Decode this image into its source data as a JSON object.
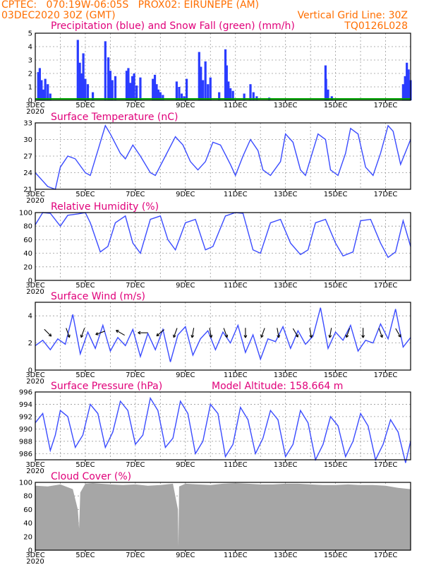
{
  "header": {
    "line1": "CPTEC:   070:19W-06:05S   PROX02: EIRUNEPE (AM)",
    "line2_left": "03DEC2020 30Z (GMT)",
    "line2_right": "Vertical Grid Line: 30Z",
    "code": "TQ0126L028"
  },
  "colors": {
    "header": "#ff6e00",
    "title": "#e0007a",
    "line": "#3a4bff",
    "precip": "#2a3cff",
    "snow": "#00a000",
    "cloud": "#a6a6a6"
  },
  "x_ticks": [
    "3DEC",
    "5DEC",
    "7DEC",
    "9DEC",
    "11DEC",
    "13DEC",
    "15DEC",
    "17DEC"
  ],
  "x_sublabel": "2020",
  "chart_data": [
    {
      "type": "bar",
      "title": "Precipitation (blue) and Snow Fall (green) (mm/h)",
      "ylim": [
        0,
        5
      ],
      "yticks": [
        0,
        1,
        2,
        3,
        4,
        5
      ],
      "xlim": [
        0,
        15
      ],
      "series": [
        {
          "name": "Precipitation",
          "x": [
            0.12,
            0.18,
            0.25,
            0.32,
            0.4,
            0.5,
            0.6,
            1.7,
            1.78,
            1.85,
            1.92,
            2.0,
            2.1,
            2.3,
            2.8,
            2.92,
            3.0,
            3.08,
            3.2,
            3.65,
            3.72,
            3.8,
            3.88,
            3.95,
            4.05,
            4.2,
            4.7,
            4.78,
            4.85,
            4.92,
            5.0,
            5.1,
            5.65,
            5.75,
            5.85,
            5.95,
            6.05,
            6.55,
            6.62,
            6.7,
            6.8,
            6.9,
            7.0,
            7.35,
            7.6,
            7.65,
            7.72,
            7.8,
            7.9,
            8.35,
            8.6,
            8.72,
            8.85,
            9.35,
            11.6,
            11.62,
            11.7,
            11.85,
            14.7,
            14.78,
            14.85,
            14.92,
            15.0
          ],
          "values": [
            2.1,
            2.4,
            1.5,
            0.8,
            1.6,
            1.2,
            0.5,
            4.5,
            2.8,
            2.0,
            3.5,
            1.6,
            1.2,
            0.6,
            4.4,
            3.2,
            2.2,
            1.5,
            1.8,
            2.2,
            2.4,
            1.3,
            1.8,
            2.0,
            1.1,
            1.7,
            1.6,
            1.9,
            1.2,
            0.8,
            0.6,
            0.4,
            1.4,
            1.0,
            0.5,
            0.3,
            1.6,
            3.6,
            2.5,
            1.5,
            2.9,
            1.2,
            1.7,
            0.6,
            3.8,
            2.6,
            1.4,
            0.9,
            0.7,
            0.5,
            1.2,
            0.6,
            0.3,
            0.2,
            2.6,
            1.6,
            0.8,
            0.3,
            1.2,
            1.8,
            2.8,
            2.3,
            1.5
          ]
        },
        {
          "name": "Snow Fall",
          "x": [
            0,
            15
          ],
          "values": [
            0.1,
            0.1
          ]
        }
      ]
    },
    {
      "type": "line",
      "title": "Surface Temperature (nC)",
      "ylim": [
        21,
        33
      ],
      "yticks": [
        21,
        24,
        27,
        30,
        33
      ],
      "xlim": [
        0,
        15
      ],
      "x": [
        0.0,
        0.5,
        0.8,
        1.0,
        1.3,
        1.6,
        2.0,
        2.2,
        2.5,
        2.8,
        3.0,
        3.4,
        3.6,
        3.9,
        4.2,
        4.6,
        4.8,
        5.2,
        5.6,
        5.9,
        6.2,
        6.5,
        6.8,
        7.1,
        7.4,
        7.8,
        8.0,
        8.3,
        8.6,
        8.9,
        9.1,
        9.4,
        9.8,
        10.0,
        10.3,
        10.6,
        10.8,
        11.0,
        11.3,
        11.6,
        11.8,
        12.1,
        12.4,
        12.6,
        12.9,
        13.2,
        13.5,
        13.8,
        14.1,
        14.3,
        14.6,
        15.0
      ],
      "y": [
        24.0,
        21.5,
        21.0,
        25.0,
        27.0,
        26.5,
        24.0,
        23.5,
        28.0,
        32.5,
        31.0,
        27.5,
        26.5,
        29.0,
        27.0,
        24.0,
        23.5,
        27.0,
        30.5,
        29.0,
        26.0,
        24.5,
        26.0,
        29.5,
        29.0,
        25.5,
        23.5,
        27.0,
        30.0,
        28.0,
        24.5,
        23.5,
        26.0,
        31.0,
        29.5,
        24.5,
        23.5,
        26.5,
        31.0,
        30.0,
        24.5,
        23.5,
        27.5,
        32.0,
        31.0,
        25.0,
        23.5,
        27.5,
        32.5,
        31.5,
        25.5,
        30.0
      ]
    },
    {
      "type": "line",
      "title": "Relative Humidity (%)",
      "ylim": [
        0,
        100
      ],
      "yticks": [
        0,
        20,
        40,
        60,
        80,
        100
      ],
      "xlim": [
        0,
        15
      ],
      "x": [
        0.0,
        0.3,
        0.6,
        1.0,
        1.3,
        1.7,
        2.0,
        2.2,
        2.6,
        2.9,
        3.2,
        3.6,
        3.9,
        4.2,
        4.6,
        5.0,
        5.3,
        5.6,
        6.0,
        6.4,
        6.8,
        7.1,
        7.6,
        8.0,
        8.3,
        8.7,
        9.0,
        9.4,
        9.8,
        10.2,
        10.6,
        10.9,
        11.2,
        11.6,
        12.0,
        12.3,
        12.7,
        13.0,
        13.4,
        13.8,
        14.1,
        14.4,
        14.7,
        15.0
      ],
      "y": [
        82.0,
        100.0,
        99.0,
        80.0,
        96.0,
        98.0,
        100.0,
        85.0,
        42.0,
        50.0,
        85.0,
        95.0,
        55.0,
        40.0,
        90.0,
        95.0,
        60.0,
        45.0,
        85.0,
        90.0,
        45.0,
        50.0,
        95.0,
        100.0,
        99.0,
        45.0,
        40.0,
        85.0,
        90.0,
        55.0,
        38.0,
        45.0,
        85.0,
        90.0,
        55.0,
        36.0,
        42.0,
        88.0,
        90.0,
        55.0,
        34.0,
        42.0,
        88.0,
        50.0
      ]
    },
    {
      "type": "line",
      "title": "Surface Wind (m/s)",
      "ylim": [
        0,
        5
      ],
      "yticks": [
        0,
        2,
        4
      ],
      "xlim": [
        0,
        15
      ],
      "x": [
        0.0,
        0.3,
        0.6,
        0.9,
        1.2,
        1.5,
        1.8,
        2.1,
        2.4,
        2.7,
        3.0,
        3.3,
        3.6,
        3.9,
        4.2,
        4.5,
        4.8,
        5.1,
        5.4,
        5.7,
        6.0,
        6.3,
        6.6,
        6.9,
        7.2,
        7.5,
        7.8,
        8.1,
        8.4,
        8.7,
        9.0,
        9.3,
        9.6,
        9.9,
        10.2,
        10.5,
        10.8,
        11.1,
        11.4,
        11.7,
        12.0,
        12.3,
        12.6,
        12.9,
        13.2,
        13.5,
        13.8,
        14.1,
        14.4,
        14.7,
        15.0
      ],
      "y": [
        1.8,
        2.2,
        1.5,
        2.3,
        1.9,
        4.1,
        1.2,
        2.8,
        1.6,
        3.3,
        1.4,
        2.4,
        1.8,
        3.0,
        1.0,
        2.7,
        1.5,
        3.0,
        0.6,
        2.6,
        3.2,
        1.1,
        2.3,
        2.9,
        1.5,
        2.8,
        2.0,
        3.3,
        1.3,
        2.6,
        0.8,
        2.3,
        2.1,
        3.2,
        1.6,
        2.9,
        1.9,
        2.5,
        4.6,
        1.6,
        2.8,
        2.2,
        3.3,
        1.4,
        2.2,
        2.0,
        3.4,
        2.3,
        4.5,
        1.7,
        2.4
      ],
      "arrows_x": [
        0.5,
        1.3,
        1.9,
        2.6,
        3.4,
        4.3,
        5.0,
        5.6,
        6.3,
        7.0,
        7.6,
        8.4,
        9.1,
        9.7,
        10.4,
        11.0,
        11.8,
        12.5,
        13.1,
        13.8,
        14.5
      ],
      "arrows_dir": [
        135,
        160,
        200,
        250,
        300,
        270,
        230,
        200,
        190,
        170,
        160,
        180,
        200,
        170,
        150,
        170,
        190,
        200,
        180,
        160,
        150
      ]
    },
    {
      "type": "line",
      "title": "Surface Pressure (hPa)",
      "annotation": "Model Altitude: 158.664 m",
      "ylim": [
        985,
        996
      ],
      "yticks": [
        986,
        988,
        990,
        992,
        994,
        996
      ],
      "xlim": [
        0,
        15
      ],
      "x": [
        0.0,
        0.3,
        0.6,
        0.8,
        1.0,
        1.3,
        1.6,
        1.9,
        2.2,
        2.5,
        2.8,
        3.1,
        3.4,
        3.7,
        4.0,
        4.3,
        4.6,
        4.9,
        5.2,
        5.5,
        5.8,
        6.1,
        6.4,
        6.7,
        7.0,
        7.3,
        7.6,
        7.9,
        8.2,
        8.5,
        8.8,
        9.1,
        9.4,
        9.7,
        10.0,
        10.3,
        10.6,
        10.9,
        11.2,
        11.5,
        11.8,
        12.1,
        12.4,
        12.7,
        13.0,
        13.3,
        13.6,
        13.9,
        14.2,
        14.5,
        14.8,
        15.0
      ],
      "y": [
        991.0,
        992.5,
        986.5,
        989.0,
        993.0,
        992.0,
        987.0,
        989.0,
        994.0,
        992.5,
        987.0,
        989.5,
        994.5,
        993.0,
        987.5,
        989.0,
        995.0,
        993.0,
        987.0,
        988.5,
        994.5,
        992.5,
        986.0,
        988.0,
        994.0,
        992.5,
        985.5,
        987.5,
        993.5,
        991.5,
        986.0,
        988.5,
        993.0,
        991.5,
        985.5,
        987.5,
        993.0,
        991.0,
        985.0,
        987.5,
        992.0,
        990.5,
        985.5,
        988.0,
        992.5,
        990.5,
        985.0,
        987.5,
        991.5,
        989.5,
        984.5,
        988.0
      ]
    },
    {
      "type": "area",
      "title": "Cloud Cover (%)",
      "ylim": [
        0,
        100
      ],
      "yticks": [
        0,
        20,
        40,
        60,
        80,
        100
      ],
      "xlim": [
        0,
        15
      ],
      "x": [
        0.0,
        0.5,
        1.0,
        1.5,
        1.7,
        1.75,
        1.8,
        2.0,
        2.3,
        2.6,
        3.0,
        3.5,
        4.0,
        4.5,
        5.0,
        5.5,
        5.7,
        5.72,
        5.75,
        6.0,
        6.5,
        7.0,
        7.5,
        8.0,
        8.5,
        9.0,
        9.5,
        10.0,
        10.5,
        11.0,
        11.5,
        12.0,
        12.5,
        13.0,
        13.5,
        14.0,
        14.5,
        15.0
      ],
      "y": [
        95,
        94,
        97,
        90,
        60,
        32,
        85,
        98,
        99,
        98,
        97,
        96,
        97,
        95,
        96,
        98,
        60,
        6,
        94,
        98,
        97,
        96,
        98,
        99,
        98,
        97,
        97,
        98,
        98,
        97,
        96,
        96,
        97,
        96,
        96,
        95,
        92,
        90
      ]
    }
  ]
}
